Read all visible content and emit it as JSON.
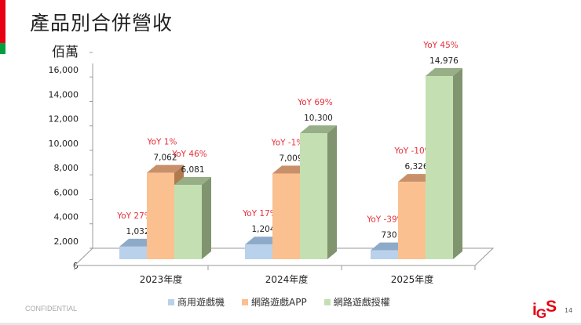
{
  "slide": {
    "title": "產品別合併營收",
    "unit": "佰萬",
    "confidential": "CONFIDENTIAL",
    "page_number": "14",
    "logo_text": "iGS"
  },
  "colors": {
    "accent_red": "#e60012",
    "accent_green": "#00a040",
    "yoy_text": "#e8303a"
  },
  "chart_data": {
    "type": "bar",
    "style": "3d-clustered-column",
    "title": "",
    "ylabel": "佰萬",
    "ylim": [
      0,
      16000
    ],
    "yticks": [
      0,
      2000,
      4000,
      6000,
      8000,
      10000,
      12000,
      14000,
      16000
    ],
    "ytick_labels": [
      "0",
      "2,000",
      "4,000",
      "6,000",
      "8,000",
      "10,000",
      "12,000",
      "14,000",
      "16,000"
    ],
    "categories": [
      "2023年度",
      "2024年度",
      "2025年度"
    ],
    "legend_position": "bottom",
    "series": [
      {
        "name": "商用遊戲機",
        "color": "#b9d1ea",
        "values": [
          1032,
          1204,
          730
        ],
        "labels": [
          "1,032",
          "1,204",
          "730"
        ],
        "yoy": [
          "YoY 27%",
          "YoY 17%",
          "YoY -39%"
        ]
      },
      {
        "name": "網路遊戲APP",
        "color": "#fac08f",
        "values": [
          7062,
          7009,
          6326
        ],
        "labels": [
          "7,062",
          "7,009",
          "6,326"
        ],
        "yoy": [
          "YoY 1%",
          "YoY -1%",
          "YoY -10%"
        ]
      },
      {
        "name": "網路遊戲授權",
        "color": "#c4e0b2",
        "values": [
          6081,
          10300,
          14976
        ],
        "labels": [
          "6,081",
          "10,300",
          "14,976"
        ],
        "yoy": [
          "YoY 46%",
          "YoY 69%",
          "YoY 45%"
        ]
      }
    ]
  }
}
